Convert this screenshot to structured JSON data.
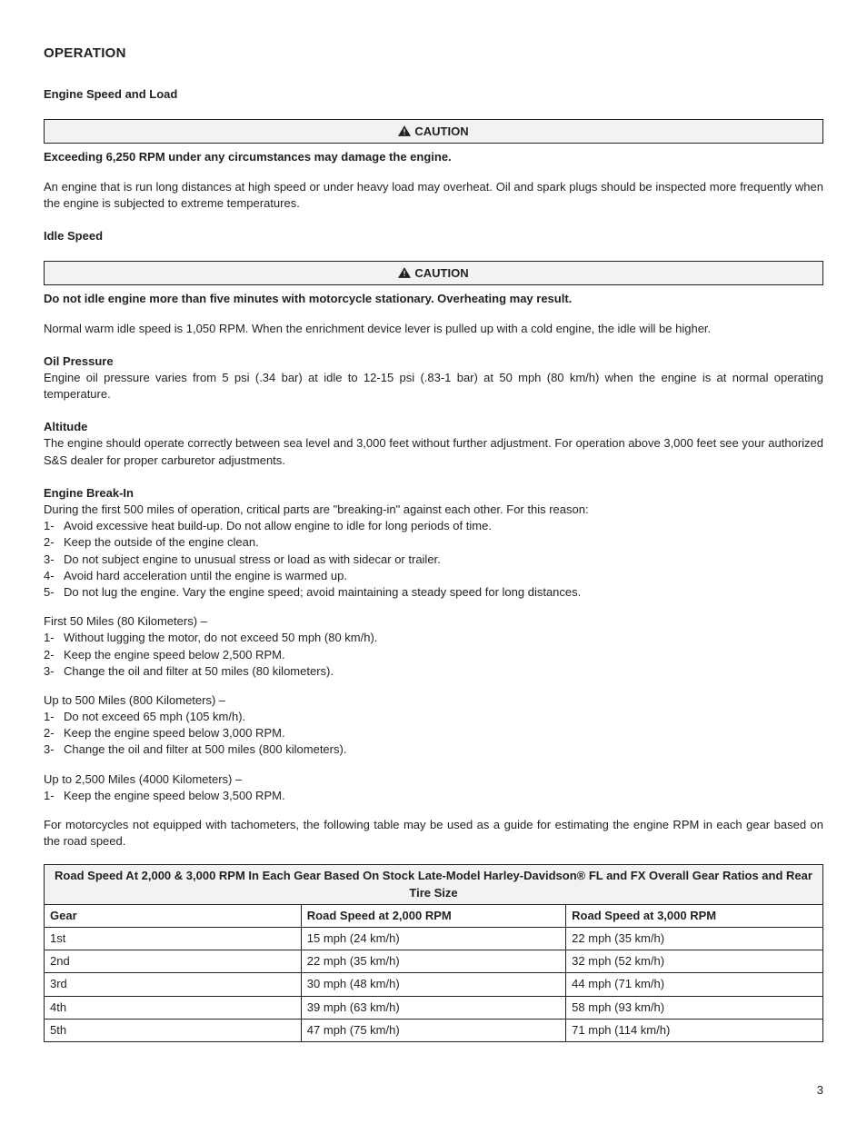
{
  "title": "OPERATION",
  "engineSpeed": {
    "heading": "Engine Speed and Load",
    "cautionLabel": "CAUTION",
    "cautionLine": "Exceeding 6,250 RPM under any circumstances may damage the engine.",
    "para": "An engine that is run long distances at high speed or under heavy load may overheat. Oil and spark plugs should be inspected more frequently when the engine is subjected to extreme temperatures."
  },
  "idleSpeed": {
    "heading": "Idle Speed",
    "cautionLabel": "CAUTION",
    "cautionLine": "Do not idle engine more than five minutes with motorcycle stationary. Overheating may result.",
    "para": "Normal warm idle speed is 1,050 RPM. When the enrichment device lever is pulled up with a cold engine, the idle will be higher."
  },
  "oilPressure": {
    "heading": "Oil Pressure",
    "para": "Engine oil pressure varies from 5 psi (.34 bar) at idle to 12-15 psi (.83-1 bar) at 50 mph (80 km/h) when the engine is at normal operating temperature."
  },
  "altitude": {
    "heading": "Altitude",
    "para": "The engine should operate correctly between sea level and 3,000 feet without further adjustment. For operation above 3,000 feet see your authorized S&S dealer for proper carburetor adjustments."
  },
  "breakIn": {
    "heading": "Engine Break-In",
    "intro": "During the first 500 miles of operation, critical parts are \"breaking-in\" against each other.  For this reason:",
    "items": [
      "Avoid excessive heat build-up. Do not allow engine to idle for long periods of time.",
      "Keep the outside of the engine clean.",
      "Do not subject engine to unusual stress or load as with sidecar or trailer.",
      "Avoid hard acceleration until the engine is warmed up.",
      "Do not lug the engine. Vary the engine speed; avoid maintaining a steady speed for long distances."
    ],
    "first50": {
      "heading": "First 50 Miles (80 Kilometers) –",
      "items": [
        "Without lugging the motor, do not exceed 50 mph (80 km/h).",
        "Keep the engine speed below 2,500 RPM.",
        "Change the oil and filter at 50 miles (80 kilometers)."
      ]
    },
    "upTo500": {
      "heading": "Up to 500 Miles (800 Kilometers) –",
      "items": [
        "Do not exceed 65 mph (105 km/h).",
        "Keep the engine speed below 3,000 RPM.",
        "Change the oil and filter at 500 miles (800 kilometers)."
      ]
    },
    "upTo2500": {
      "heading": "Up to 2,500 Miles (4000 Kilometers) –",
      "items": [
        "Keep the engine speed below 3,500 RPM."
      ]
    },
    "tablePara": "For motorcycles not equipped with tachometers, the following table may be used as a guide for estimating the engine RPM in each gear based on the road speed."
  },
  "speedTable": {
    "caption": "Road Speed At 2,000 & 3,000 RPM In Each Gear Based On Stock Late-Model Harley-Davidson® FL and FX Overall Gear Ratios and Rear Tire Size",
    "columns": [
      "Gear",
      "Road Speed at 2,000 RPM",
      "Road Speed at 3,000 RPM"
    ],
    "rows": [
      [
        "1st",
        "15 mph (24 km/h)",
        "22 mph (35 km/h)"
      ],
      [
        "2nd",
        "22 mph (35 km/h)",
        "32 mph (52 km/h)"
      ],
      [
        "3rd",
        "30 mph (48 km/h)",
        "44 mph (71 km/h)"
      ],
      [
        "4th",
        "39 mph (63 km/h)",
        "58 mph (93 km/h)"
      ],
      [
        "5th",
        "47 mph (75 km/h)",
        "71 mph (114 km/h)"
      ]
    ],
    "colWidths": [
      "33%",
      "34%",
      "33%"
    ]
  },
  "pageNumber": "3",
  "colors": {
    "text": "#231f20",
    "bg": "#ffffff",
    "boxBg": "#f2f2f2"
  }
}
